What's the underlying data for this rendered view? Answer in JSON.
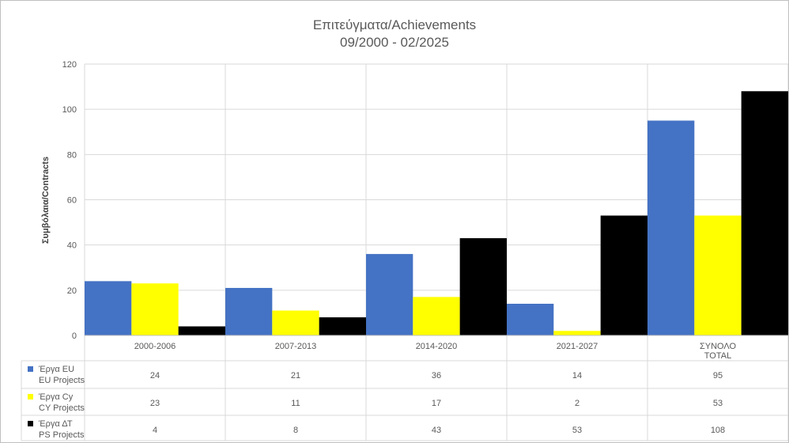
{
  "chart_data": {
    "type": "bar",
    "title": [
      "Επιτεύγματα/Achievements",
      "09/2000 - 02/2025"
    ],
    "ylabel": "Συμβόλαια/Contracts",
    "xlabel": "",
    "ylim": [
      0,
      120
    ],
    "yticks": [
      0,
      20,
      40,
      60,
      80,
      100,
      120
    ],
    "grid": true,
    "legend": "data-table-left",
    "categories": [
      [
        "2000-2006"
      ],
      [
        "2007-2013"
      ],
      [
        "2014-2020"
      ],
      [
        "2021-2027"
      ],
      [
        "ΣΥΝΟΛΟ",
        "TOTAL"
      ]
    ],
    "series": [
      {
        "name": [
          "Έργα EU",
          "EU Projects"
        ],
        "color": "#4472C4",
        "values": [
          24,
          21,
          36,
          14,
          95
        ]
      },
      {
        "name": [
          "Έργα Cy",
          "CY Projects"
        ],
        "color": "#FFFF00",
        "values": [
          23,
          11,
          17,
          2,
          53
        ]
      },
      {
        "name": [
          "Έργα ΔΤ",
          "PS Projects"
        ],
        "color": "#000000",
        "values": [
          4,
          8,
          43,
          53,
          108
        ]
      }
    ]
  }
}
